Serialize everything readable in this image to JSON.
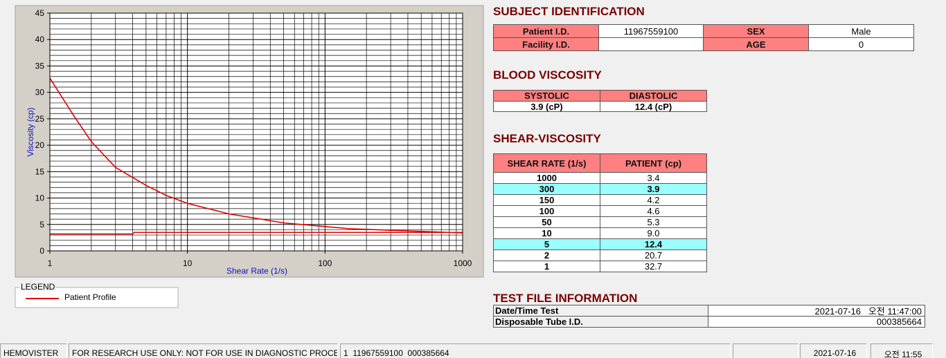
{
  "chart": {
    "type": "line",
    "xlabel": "Shear Rate (1/s)",
    "ylabel": "Viscosity (cp)",
    "xlog": true,
    "xlim": [
      1,
      1000
    ],
    "xticks": [
      1,
      10,
      100,
      1000
    ],
    "xminorticks": [
      2,
      3,
      4,
      5,
      6,
      7,
      8,
      9,
      20,
      30,
      40,
      50,
      60,
      70,
      80,
      90,
      200,
      300,
      400,
      500,
      600,
      700,
      800,
      900
    ],
    "ylim": [
      0,
      45
    ],
    "yticks": [
      0,
      5,
      10,
      15,
      20,
      25,
      30,
      35,
      40,
      45
    ],
    "yminorticks": [
      1,
      2,
      3,
      4,
      6,
      7,
      8,
      9,
      11,
      12,
      13,
      14,
      16,
      17,
      18,
      19,
      21,
      22,
      23,
      24,
      26,
      27,
      28,
      29,
      31,
      32,
      33,
      34,
      36,
      37,
      38,
      39,
      41,
      42,
      43,
      44
    ],
    "grid": true,
    "legend_title": "LEGEND",
    "series": [
      {
        "name": "Patient Profile",
        "color": "#e00000",
        "x": [
          1,
          1.5,
          2,
          3,
          5,
          7,
          10,
          20,
          50,
          100,
          150,
          300,
          1000
        ],
        "values": [
          32.7,
          25.5,
          20.7,
          15.8,
          12.4,
          10.5,
          9.0,
          7.0,
          5.3,
          4.6,
          4.2,
          3.9,
          3.4
        ]
      },
      {
        "color": "#e00000",
        "x": [
          1,
          4,
          4.1,
          1000
        ],
        "values": [
          3.2,
          3.2,
          3.5,
          3.5
        ]
      }
    ]
  },
  "subject_identification": {
    "title": "SUBJECT IDENTIFICATION",
    "fields": [
      {
        "label": "Patient I.D.",
        "value": "11967559100"
      },
      {
        "label": "SEX",
        "value": "Male"
      },
      {
        "label": "Facility I.D."
      },
      {
        "label": "AGE",
        "value": 0
      }
    ]
  },
  "blood_viscosity": {
    "title": "BLOOD VISCOSITY",
    "headers": [
      "SYSTOLIC",
      "DIASTOLIC"
    ],
    "values": [
      "3.9 (cP)",
      "12.4 (cP)"
    ]
  },
  "shear_viscosity": {
    "title": "SHEAR-VISCOSITY",
    "headers": [
      "SHEAR RATE (1/s)",
      "PATIENT (cp)"
    ],
    "highlight_color": "#99ffff",
    "rows": [
      {
        "shear_rate": "1000",
        "patient": "3.4"
      },
      {
        "shear_rate": "300",
        "patient": "3.9",
        "highlight": true
      },
      {
        "shear_rate": "150",
        "patient": "4.2"
      },
      {
        "shear_rate": "100",
        "patient": "4.6"
      },
      {
        "shear_rate": "50",
        "patient": "5.3"
      },
      {
        "shear_rate": "10",
        "patient": "9.0"
      },
      {
        "shear_rate": "5",
        "patient": "12.4",
        "highlight": true
      },
      {
        "shear_rate": "2",
        "patient": "20.7"
      },
      {
        "shear_rate": "1",
        "patient": "32.7"
      }
    ]
  },
  "test_file": {
    "title": "TEST FILE INFORMATION",
    "rows": [
      {
        "label": "Date/Time Test",
        "value": "2021-07-16   오전 11:47:00"
      },
      {
        "label": "Disposable Tube I.D.",
        "value": "000385664"
      }
    ]
  },
  "status_bar": [
    "HEMOVISTER",
    "FOR RESEARCH USE ONLY: NOT FOR USE IN DIAGNOSTIC PROCEDURES",
    "1  11967559100  000385664",
    "2021-07-16",
    "오전 11:55"
  ]
}
